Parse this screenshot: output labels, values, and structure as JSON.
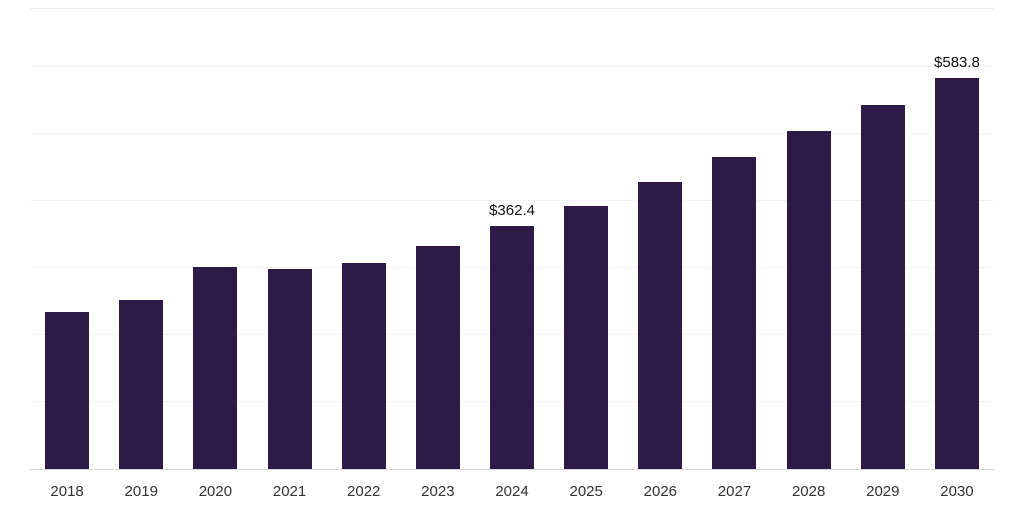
{
  "chart_data": {
    "type": "bar",
    "categories": [
      "2018",
      "2019",
      "2020",
      "2021",
      "2022",
      "2023",
      "2024",
      "2025",
      "2026",
      "2027",
      "2028",
      "2029",
      "2030"
    ],
    "values": [
      235,
      252.5,
      302,
      299,
      308,
      333.5,
      362.4,
      393,
      429,
      466,
      505,
      544,
      583.8
    ],
    "data_labels": {
      "2024": "$362.4",
      "2030": "$583.8"
    },
    "title": "",
    "xlabel": "",
    "ylabel": "",
    "ylim": [
      0,
      690
    ],
    "grid": true,
    "legend": false,
    "bar_color": "#2e1a47",
    "gridline_values": [
      100,
      200,
      300,
      400,
      500,
      600
    ],
    "gridline_color": "#f2f2f2",
    "axis_line_color": "#d9d9d9",
    "label_color": "#111111",
    "tick_color": "#333333"
  }
}
